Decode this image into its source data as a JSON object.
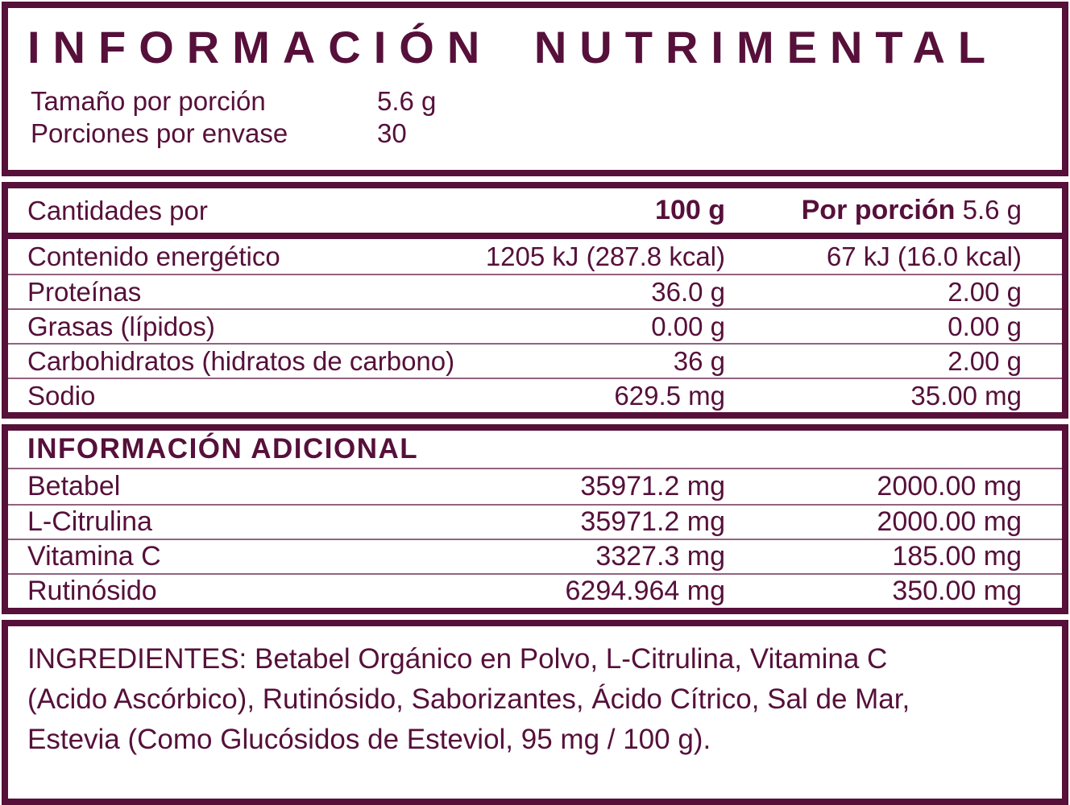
{
  "colors": {
    "maroon": "#56103A"
  },
  "title": "INFORMACIÓN NUTRIMENTAL",
  "serving": {
    "size_label": "Tamaño por porción",
    "size_value": "5.6 g",
    "count_label": "Porciones por envase",
    "count_value": "30"
  },
  "table": {
    "header": {
      "label": "Cantidades por",
      "col1": "100 g",
      "col2_bold": "Por porción",
      "col2_normal": "5.6 g"
    },
    "rows": [
      {
        "label": "Contenido energético",
        "per100": "1205 kJ (287.8 kcal)",
        "per_serving": "67 kJ (16.0 kcal)"
      },
      {
        "label": "Proteínas",
        "per100": "36.0 g",
        "per_serving": "2.00 g"
      },
      {
        "label": "Grasas (lípidos)",
        "per100": "0.00 g",
        "per_serving": "0.00 g"
      },
      {
        "label": "Carbohidratos (hidratos de carbono)",
        "per100": "36 g",
        "per_serving": "2.00 g"
      },
      {
        "label": "Sodio",
        "per100": "629.5 mg",
        "per_serving": "35.00 mg"
      }
    ]
  },
  "additional": {
    "header": "INFORMACIÓN ADICIONAL",
    "rows": [
      {
        "label": "Betabel",
        "per100": "35971.2 mg",
        "per_serving": "2000.00 mg"
      },
      {
        "label": "L-Citrulina",
        "per100": "35971.2 mg",
        "per_serving": "2000.00 mg"
      },
      {
        "label": "Vitamina C",
        "per100": "3327.3 mg",
        "per_serving": "185.00 mg"
      },
      {
        "label": "Rutinósido",
        "per100": "6294.964 mg",
        "per_serving": "350.00 mg"
      }
    ]
  },
  "ingredients": {
    "lines": [
      "INGREDIENTES: Betabel Orgánico en Polvo, L-Citrulina, Vitamina C",
      "(Acido Ascórbico), Rutinósido, Saborizantes, Ácido Cítrico, Sal de Mar,",
      "Estevia (Como Glucósidos de Esteviol, 95 mg / 100 g)."
    ]
  }
}
